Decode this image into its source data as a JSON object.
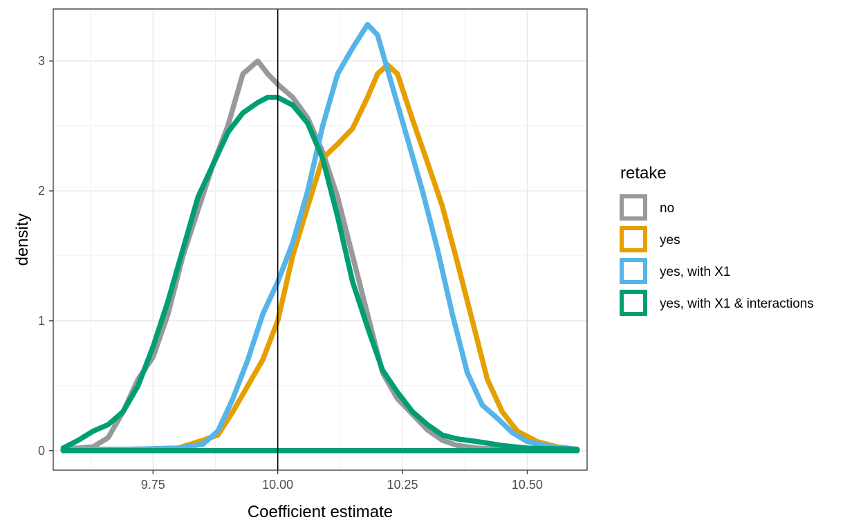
{
  "chart_data": {
    "type": "line",
    "subtype": "density",
    "title": "",
    "xlabel": "Coefficient estimate",
    "ylabel": "density",
    "xlim": [
      9.55,
      10.62
    ],
    "ylim": [
      -0.15,
      3.4
    ],
    "x_ticks": [
      9.75,
      10.0,
      10.25,
      10.5
    ],
    "x_tick_labels": [
      "9.75",
      "10.00",
      "10.25",
      "10.50"
    ],
    "y_ticks": [
      0,
      1,
      2,
      3
    ],
    "y_tick_labels": [
      "0",
      "1",
      "2",
      "3"
    ],
    "grid": true,
    "vline_x": 10.0,
    "legend": {
      "title": "retake",
      "position": "right"
    },
    "series": [
      {
        "name": "no",
        "color": "#999999",
        "points": [
          [
            9.57,
            0.02
          ],
          [
            9.6,
            0.02
          ],
          [
            9.63,
            0.03
          ],
          [
            9.66,
            0.1
          ],
          [
            9.69,
            0.3
          ],
          [
            9.72,
            0.55
          ],
          [
            9.75,
            0.72
          ],
          [
            9.78,
            1.05
          ],
          [
            9.81,
            1.5
          ],
          [
            9.84,
            1.85
          ],
          [
            9.87,
            2.2
          ],
          [
            9.9,
            2.5
          ],
          [
            9.93,
            2.9
          ],
          [
            9.96,
            3.0
          ],
          [
            9.98,
            2.9
          ],
          [
            10.0,
            2.82
          ],
          [
            10.03,
            2.72
          ],
          [
            10.06,
            2.56
          ],
          [
            10.09,
            2.3
          ],
          [
            10.12,
            1.95
          ],
          [
            10.15,
            1.5
          ],
          [
            10.18,
            1.05
          ],
          [
            10.21,
            0.6
          ],
          [
            10.24,
            0.4
          ],
          [
            10.27,
            0.28
          ],
          [
            10.3,
            0.16
          ],
          [
            10.33,
            0.08
          ],
          [
            10.36,
            0.04
          ],
          [
            10.4,
            0.02
          ],
          [
            10.45,
            0.01
          ],
          [
            10.5,
            0.01
          ],
          [
            10.6,
            0.01
          ]
        ]
      },
      {
        "name": "yes",
        "color": "#E69F00",
        "points": [
          [
            9.57,
            0.01
          ],
          [
            9.7,
            0.01
          ],
          [
            9.8,
            0.02
          ],
          [
            9.85,
            0.08
          ],
          [
            9.88,
            0.12
          ],
          [
            9.91,
            0.3
          ],
          [
            9.94,
            0.5
          ],
          [
            9.97,
            0.7
          ],
          [
            10.0,
            1.0
          ],
          [
            10.03,
            1.5
          ],
          [
            10.06,
            1.88
          ],
          [
            10.09,
            2.25
          ],
          [
            10.12,
            2.36
          ],
          [
            10.15,
            2.48
          ],
          [
            10.18,
            2.72
          ],
          [
            10.2,
            2.9
          ],
          [
            10.22,
            2.97
          ],
          [
            10.24,
            2.9
          ],
          [
            10.27,
            2.55
          ],
          [
            10.3,
            2.22
          ],
          [
            10.33,
            1.88
          ],
          [
            10.36,
            1.45
          ],
          [
            10.39,
            1.0
          ],
          [
            10.42,
            0.55
          ],
          [
            10.45,
            0.3
          ],
          [
            10.48,
            0.15
          ],
          [
            10.52,
            0.07
          ],
          [
            10.56,
            0.03
          ],
          [
            10.6,
            0.01
          ]
        ]
      },
      {
        "name": "yes, with X1",
        "color": "#56B4E9",
        "points": [
          [
            9.57,
            0.01
          ],
          [
            9.7,
            0.01
          ],
          [
            9.8,
            0.02
          ],
          [
            9.85,
            0.05
          ],
          [
            9.88,
            0.15
          ],
          [
            9.91,
            0.4
          ],
          [
            9.94,
            0.7
          ],
          [
            9.97,
            1.05
          ],
          [
            10.0,
            1.3
          ],
          [
            10.03,
            1.6
          ],
          [
            10.06,
            2.0
          ],
          [
            10.09,
            2.5
          ],
          [
            10.12,
            2.9
          ],
          [
            10.15,
            3.1
          ],
          [
            10.18,
            3.28
          ],
          [
            10.2,
            3.2
          ],
          [
            10.23,
            2.8
          ],
          [
            10.26,
            2.4
          ],
          [
            10.29,
            2.0
          ],
          [
            10.32,
            1.55
          ],
          [
            10.35,
            1.05
          ],
          [
            10.38,
            0.6
          ],
          [
            10.41,
            0.35
          ],
          [
            10.44,
            0.25
          ],
          [
            10.47,
            0.14
          ],
          [
            10.5,
            0.07
          ],
          [
            10.55,
            0.03
          ],
          [
            10.6,
            0.01
          ]
        ]
      },
      {
        "name": "yes, with X1 & interactions",
        "color": "#009E73",
        "points": [
          [
            9.57,
            0.02
          ],
          [
            9.6,
            0.08
          ],
          [
            9.63,
            0.15
          ],
          [
            9.66,
            0.2
          ],
          [
            9.69,
            0.3
          ],
          [
            9.72,
            0.5
          ],
          [
            9.75,
            0.8
          ],
          [
            9.78,
            1.15
          ],
          [
            9.81,
            1.55
          ],
          [
            9.84,
            1.95
          ],
          [
            9.87,
            2.2
          ],
          [
            9.9,
            2.45
          ],
          [
            9.93,
            2.6
          ],
          [
            9.96,
            2.68
          ],
          [
            9.98,
            2.72
          ],
          [
            10.0,
            2.72
          ],
          [
            10.03,
            2.66
          ],
          [
            10.06,
            2.52
          ],
          [
            10.09,
            2.25
          ],
          [
            10.12,
            1.8
          ],
          [
            10.15,
            1.3
          ],
          [
            10.18,
            0.95
          ],
          [
            10.21,
            0.62
          ],
          [
            10.24,
            0.45
          ],
          [
            10.27,
            0.3
          ],
          [
            10.3,
            0.2
          ],
          [
            10.33,
            0.12
          ],
          [
            10.36,
            0.09
          ],
          [
            10.4,
            0.07
          ],
          [
            10.45,
            0.04
          ],
          [
            10.5,
            0.02
          ],
          [
            10.6,
            0.01
          ]
        ]
      }
    ]
  }
}
